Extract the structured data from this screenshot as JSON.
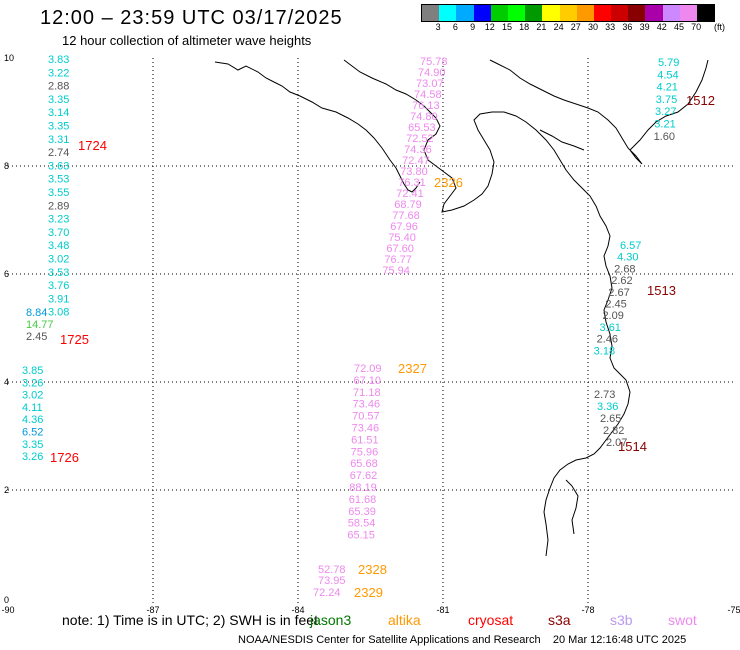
{
  "header": {
    "title": "12:00 – 23:59 UTC 03/17/2025",
    "subtitle": "12 hour collection of altimeter wave heights"
  },
  "colorbar": {
    "units": "(ft)",
    "colors": [
      "#7f7f7f",
      "#00ffff",
      "#00aaff",
      "#0000ff",
      "#00cc00",
      "#00ff00",
      "#009900",
      "#ffff00",
      "#ffcc00",
      "#ff9900",
      "#ff0000",
      "#cc0000",
      "#880000",
      "#aa00aa",
      "#cc88ff",
      "#ee88ee",
      "#000000"
    ],
    "labels": [
      "3",
      "6",
      "9",
      "12",
      "15",
      "18",
      "21",
      "24",
      "27",
      "30",
      "33",
      "36",
      "39",
      "42",
      "45",
      "70"
    ]
  },
  "axes": {
    "x_ticks": [
      "-90",
      "-87",
      "-84",
      "-81",
      "-78",
      "-75"
    ],
    "y_ticks": [
      "0",
      "2",
      "4",
      "6",
      "8",
      "10"
    ]
  },
  "tracks": [
    {
      "pass": "1724",
      "pass_color": "#ff0000",
      "values": [
        {
          "v": "3.83",
          "c": "#00cccc"
        },
        {
          "v": "3.22",
          "c": "#00cccc"
        },
        {
          "v": "2.88",
          "c": "#555555"
        },
        {
          "v": "3.35",
          "c": "#00cccc"
        },
        {
          "v": "3.14",
          "c": "#00cccc"
        },
        {
          "v": "3.35",
          "c": "#00cccc"
        },
        {
          "v": "3.31",
          "c": "#00cccc"
        },
        {
          "v": "2.74",
          "c": "#555555"
        },
        {
          "v": "3.63",
          "c": "#00cccc"
        },
        {
          "v": "3.53",
          "c": "#00cccc"
        },
        {
          "v": "3.55",
          "c": "#00cccc"
        },
        {
          "v": "2.89",
          "c": "#555555"
        },
        {
          "v": "3.23",
          "c": "#00cccc"
        },
        {
          "v": "3.70",
          "c": "#00cccc"
        },
        {
          "v": "3.48",
          "c": "#00cccc"
        },
        {
          "v": "3.02",
          "c": "#00cccc"
        },
        {
          "v": "3.53",
          "c": "#00cccc"
        },
        {
          "v": "3.76",
          "c": "#00cccc"
        },
        {
          "v": "3.91",
          "c": "#00cccc"
        },
        {
          "v": "3.08",
          "c": "#00cccc"
        }
      ]
    },
    {
      "pass": "1725",
      "pass_color": "#ff0000",
      "values": [
        {
          "v": "8.84",
          "c": "#0099dd"
        },
        {
          "v": "14.77",
          "c": "#44cc44"
        },
        {
          "v": "2.45",
          "c": "#555555"
        }
      ]
    },
    {
      "pass": "1726",
      "pass_color": "#ff0000",
      "values": [
        {
          "v": "3.85",
          "c": "#00cccc"
        },
        {
          "v": "3.26",
          "c": "#00cccc"
        },
        {
          "v": "3.02",
          "c": "#00cccc"
        },
        {
          "v": "4.11",
          "c": "#00cccc"
        },
        {
          "v": "4.36",
          "c": "#00cccc"
        },
        {
          "v": "6.52",
          "c": "#0099dd"
        },
        {
          "v": "3.35",
          "c": "#00cccc"
        },
        {
          "v": "3.26",
          "c": "#00cccc"
        }
      ]
    },
    {
      "pass": "2326",
      "pass_color": "#ff9900",
      "values": [
        {
          "v": "75.78",
          "c": "#ee88ee"
        },
        {
          "v": "74.90",
          "c": "#ee88ee"
        },
        {
          "v": "73.07",
          "c": "#ee88ee"
        },
        {
          "v": "74.58",
          "c": "#ee88ee"
        },
        {
          "v": "76.13",
          "c": "#ee88ee"
        },
        {
          "v": "74.80",
          "c": "#ee88ee"
        },
        {
          "v": "65.53",
          "c": "#ee88ee"
        },
        {
          "v": "72.52",
          "c": "#ee88ee"
        },
        {
          "v": "74.36",
          "c": "#ee88ee"
        },
        {
          "v": "72.47",
          "c": "#ee88ee"
        },
        {
          "v": "73.80",
          "c": "#ee88ee"
        },
        {
          "v": "76.31",
          "c": "#ee88ee"
        },
        {
          "v": "72.41",
          "c": "#ee88ee"
        },
        {
          "v": "68.79",
          "c": "#ee88ee"
        },
        {
          "v": "77.68",
          "c": "#ee88ee"
        },
        {
          "v": "67.96",
          "c": "#ee88ee"
        },
        {
          "v": "75.40",
          "c": "#ee88ee"
        },
        {
          "v": "67.60",
          "c": "#ee88ee"
        },
        {
          "v": "76.77",
          "c": "#ee88ee"
        },
        {
          "v": "75.94",
          "c": "#ee88ee"
        }
      ]
    },
    {
      "pass": "2327",
      "pass_color": "#ff9900",
      "values": [
        {
          "v": "72.09",
          "c": "#ee88ee"
        },
        {
          "v": "67.10",
          "c": "#ee88ee"
        },
        {
          "v": "71.18",
          "c": "#ee88ee"
        },
        {
          "v": "73.46",
          "c": "#ee88ee"
        },
        {
          "v": "70.57",
          "c": "#ee88ee"
        },
        {
          "v": "73.46",
          "c": "#ee88ee"
        },
        {
          "v": "61.51",
          "c": "#ee88ee"
        },
        {
          "v": "75.96",
          "c": "#ee88ee"
        },
        {
          "v": "65.68",
          "c": "#ee88ee"
        },
        {
          "v": "67.62",
          "c": "#ee88ee"
        },
        {
          "v": "88.19",
          "c": "#ee88ee"
        },
        {
          "v": "61.68",
          "c": "#ee88ee"
        },
        {
          "v": "65.39",
          "c": "#ee88ee"
        },
        {
          "v": "58.54",
          "c": "#ee88ee"
        },
        {
          "v": "65.15",
          "c": "#ee88ee"
        }
      ]
    },
    {
      "pass": "2328",
      "pass_color": "#ff9900",
      "values": [
        {
          "v": "52.78",
          "c": "#ee88ee"
        },
        {
          "v": "73.95",
          "c": "#ee88ee"
        }
      ]
    },
    {
      "pass": "2329",
      "pass_color": "#ff9900",
      "values": [
        {
          "v": "72.24",
          "c": "#ee88ee"
        }
      ]
    },
    {
      "pass": "1512",
      "pass_color": "#880000",
      "values": [
        {
          "v": "5.79",
          "c": "#00cccc"
        },
        {
          "v": "4.54",
          "c": "#00cccc"
        },
        {
          "v": "4.21",
          "c": "#00cccc"
        },
        {
          "v": "3.75",
          "c": "#00cccc"
        },
        {
          "v": "3.27",
          "c": "#00cccc"
        },
        {
          "v": "3.21",
          "c": "#00cccc"
        },
        {
          "v": "1.60",
          "c": "#555555"
        }
      ]
    },
    {
      "pass": "1513",
      "pass_color": "#880000",
      "values": [
        {
          "v": "6.57",
          "c": "#00cccc"
        },
        {
          "v": "4.30",
          "c": "#00cccc"
        },
        {
          "v": "2.68",
          "c": "#555555"
        },
        {
          "v": "2.62",
          "c": "#555555"
        },
        {
          "v": "2.67",
          "c": "#555555"
        },
        {
          "v": "2.45",
          "c": "#555555"
        },
        {
          "v": "2.09",
          "c": "#555555"
        },
        {
          "v": "3.61",
          "c": "#00cccc"
        },
        {
          "v": "2.46",
          "c": "#555555"
        },
        {
          "v": "3.18",
          "c": "#00cccc"
        }
      ]
    },
    {
      "pass": "1514",
      "pass_color": "#880000",
      "values": [
        {
          "v": "2.73",
          "c": "#555555"
        },
        {
          "v": "3.36",
          "c": "#00cccc"
        },
        {
          "v": "2.65",
          "c": "#555555"
        },
        {
          "v": "2.82",
          "c": "#555555"
        },
        {
          "v": "2.07",
          "c": "#555555"
        }
      ]
    }
  ],
  "note": {
    "text": "note:  1) Time is in UTC; 2) SWH is in feet",
    "missions": [
      {
        "name": "jason3",
        "color": "#007700"
      },
      {
        "name": "altika",
        "color": "#ff9900"
      },
      {
        "name": "cryosat",
        "color": "#ff0000"
      },
      {
        "name": "s3a",
        "color": "#880000"
      },
      {
        "name": "s3b",
        "color": "#bb99ee"
      },
      {
        "name": "swot",
        "color": "#ee88ee"
      }
    ]
  },
  "footer": {
    "credit": "NOAA/NESDIS Center for Satellite Applications and Research",
    "timestamp": "20 Mar 12:16:48 UTC 2025"
  }
}
